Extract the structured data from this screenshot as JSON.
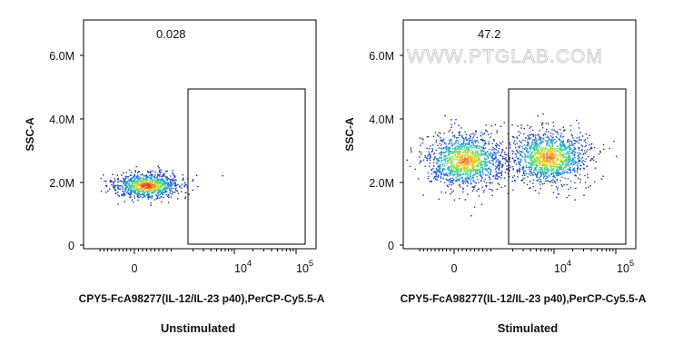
{
  "watermark": "WWW.PTGLAB.COM",
  "chart_data": [
    {
      "type": "scatter",
      "panel": "left",
      "caption": "Unstimulated",
      "xlabel": "CPY5-FcA98277(IL-12/IL-23 p40),PerCP-Cy5.5-A",
      "ylabel": "SSC-A",
      "x_scale": "biexponential",
      "x_ticks": [
        {
          "value": 0,
          "base": "0",
          "exp": ""
        },
        {
          "value": 10000,
          "base": "10",
          "exp": "4"
        },
        {
          "value": 100000,
          "base": "10",
          "exp": "5"
        }
      ],
      "y_ticks": [
        {
          "value": 0,
          "label": "0"
        },
        {
          "value": 2000000,
          "label": "2.0M"
        },
        {
          "value": 4000000,
          "label": "4.0M"
        },
        {
          "value": 6000000,
          "label": "6.0M"
        }
      ],
      "ylim": [
        -200000,
        7200000
      ],
      "gate": {
        "x_range": [
          1500,
          100000
        ],
        "y_range": [
          0,
          4900000
        ],
        "percent": "0.028"
      },
      "clusters": [
        {
          "x_center": 300,
          "y_center": 1900000,
          "n": 950
        }
      ]
    },
    {
      "type": "scatter",
      "panel": "right",
      "caption": "Stimulated",
      "xlabel": "CPY5-FcA98277(IL-12/IL-23 p40),PerCP-Cy5.5-A",
      "ylabel": "SSC-A",
      "x_scale": "biexponential",
      "x_ticks": [
        {
          "value": 0,
          "base": "0",
          "exp": ""
        },
        {
          "value": 10000,
          "base": "10",
          "exp": "4"
        },
        {
          "value": 100000,
          "base": "10",
          "exp": "5"
        }
      ],
      "y_ticks": [
        {
          "value": 0,
          "label": "0"
        },
        {
          "value": 2000000,
          "label": "2.0M"
        },
        {
          "value": 4000000,
          "label": "4.0M"
        },
        {
          "value": 6000000,
          "label": "6.0M"
        }
      ],
      "ylim": [
        -200000,
        7200000
      ],
      "gate": {
        "x_range": [
          1500,
          100000
        ],
        "y_range": [
          0,
          4900000
        ],
        "percent": "47.2"
      },
      "clusters": [
        {
          "x_center": 250,
          "y_center": 2700000,
          "n": 1300
        },
        {
          "x_center": 8000,
          "y_center": 2800000,
          "n": 1300
        }
      ]
    }
  ]
}
